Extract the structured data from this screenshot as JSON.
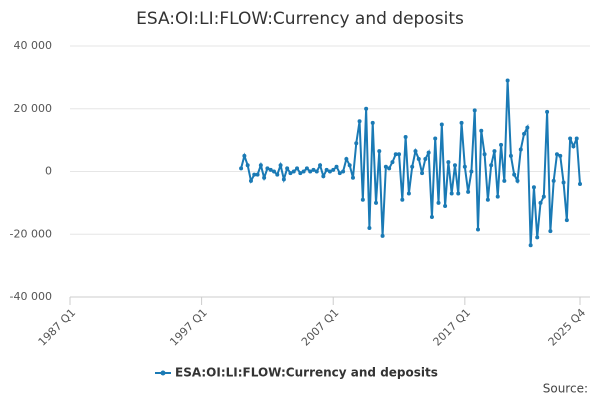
{
  "chart_data": {
    "type": "line",
    "title": "ESA:OI:LI:FLOW:Currency and deposits",
    "source": "Source:",
    "categories": [
      "1987 Q1",
      "1987 Q2",
      "1987 Q3",
      "1987 Q4",
      "1988 Q1",
      "1988 Q2",
      "1988 Q3",
      "1988 Q4",
      "1989 Q1",
      "1989 Q2",
      "1989 Q3",
      "1989 Q4",
      "1990 Q1",
      "1990 Q2",
      "1990 Q3",
      "1990 Q4",
      "1991 Q1",
      "1991 Q2",
      "1991 Q3",
      "1991 Q4",
      "1992 Q1",
      "1992 Q2",
      "1992 Q3",
      "1992 Q4",
      "1993 Q1",
      "1993 Q2",
      "1993 Q3",
      "1993 Q4",
      "1994 Q1",
      "1994 Q2",
      "1994 Q3",
      "1994 Q4",
      "1995 Q1",
      "1995 Q2",
      "1995 Q3",
      "1995 Q4",
      "1996 Q1",
      "1996 Q2",
      "1996 Q3",
      "1996 Q4",
      "1997 Q1",
      "1997 Q2",
      "1997 Q3",
      "1997 Q4",
      "1998 Q1",
      "1998 Q2",
      "1998 Q3",
      "1998 Q4",
      "1999 Q1",
      "1999 Q2",
      "1999 Q3",
      "1999 Q4",
      "2000 Q1",
      "2000 Q2",
      "2000 Q3",
      "2000 Q4",
      "2001 Q1",
      "2001 Q2",
      "2001 Q3",
      "2001 Q4",
      "2002 Q1",
      "2002 Q2",
      "2002 Q3",
      "2002 Q4",
      "2003 Q1",
      "2003 Q2",
      "2003 Q3",
      "2003 Q4",
      "2004 Q1",
      "2004 Q2",
      "2004 Q3",
      "2004 Q4",
      "2005 Q1",
      "2005 Q2",
      "2005 Q3",
      "2005 Q4",
      "2006 Q1",
      "2006 Q2",
      "2006 Q3",
      "2006 Q4",
      "2007 Q1",
      "2007 Q2",
      "2007 Q3",
      "2007 Q4",
      "2008 Q1",
      "2008 Q2",
      "2008 Q3",
      "2008 Q4",
      "2009 Q1",
      "2009 Q2",
      "2009 Q3",
      "2009 Q4",
      "2010 Q1",
      "2010 Q2",
      "2010 Q3",
      "2010 Q4",
      "2011 Q1",
      "2011 Q2",
      "2011 Q3",
      "2011 Q4",
      "2012 Q1",
      "2012 Q2",
      "2012 Q3",
      "2012 Q4",
      "2013 Q1",
      "2013 Q2",
      "2013 Q3",
      "2013 Q4",
      "2014 Q1",
      "2014 Q2",
      "2014 Q3",
      "2014 Q4",
      "2015 Q1",
      "2015 Q2",
      "2015 Q3",
      "2015 Q4",
      "2016 Q1",
      "2016 Q2",
      "2016 Q3",
      "2016 Q4",
      "2017 Q1",
      "2017 Q2",
      "2017 Q3",
      "2017 Q4",
      "2018 Q1",
      "2018 Q2",
      "2018 Q3",
      "2018 Q4",
      "2019 Q1",
      "2019 Q2",
      "2019 Q3",
      "2019 Q4",
      "2020 Q1",
      "2020 Q2",
      "2020 Q3",
      "2020 Q4",
      "2021 Q1",
      "2021 Q2",
      "2021 Q3",
      "2021 Q4",
      "2022 Q1",
      "2022 Q2",
      "2022 Q3",
      "2022 Q4",
      "2023 Q1",
      "2023 Q2",
      "2023 Q3",
      "2023 Q4",
      "2024 Q1",
      "2024 Q2",
      "2024 Q3",
      "2024 Q4",
      "2025 Q1",
      "2025 Q2",
      "2025 Q3",
      "2025 Q4"
    ],
    "series": [
      {
        "name": "ESA:OI:LI:FLOW:Currency and deposits",
        "color": "#1a7ab5",
        "values": [
          null,
          null,
          null,
          null,
          null,
          null,
          null,
          null,
          null,
          null,
          null,
          null,
          null,
          null,
          null,
          null,
          null,
          null,
          null,
          null,
          null,
          null,
          null,
          null,
          null,
          null,
          null,
          null,
          null,
          null,
          null,
          null,
          null,
          null,
          null,
          null,
          null,
          null,
          null,
          null,
          null,
          null,
          null,
          null,
          null,
          null,
          null,
          null,
          null,
          null,
          null,
          null,
          1000,
          5000,
          2000,
          -3000,
          -1000,
          -1000,
          2000,
          -2000,
          1000,
          500,
          0,
          -1000,
          2000,
          -2500,
          1000,
          -500,
          0,
          1000,
          -500,
          0,
          1000,
          0,
          500,
          0,
          2000,
          -1500,
          500,
          0,
          500,
          1500,
          -500,
          0,
          4000,
          2000,
          -2000,
          9000,
          16000,
          -9000,
          20000,
          -18000,
          15500,
          -10000,
          6500,
          -20500,
          1500,
          1000,
          3000,
          5500,
          5500,
          -9000,
          11000,
          -7000,
          1500,
          6500,
          4000,
          -500,
          4000,
          6000,
          -14500,
          10500,
          -10000,
          15000,
          -11000,
          3000,
          -7000,
          2000,
          -7000,
          15500,
          1500,
          -6500,
          0,
          19500,
          -18500,
          13000,
          5500,
          -9000,
          2000,
          6500,
          -8000,
          8500,
          -3000,
          29000,
          5000,
          -1000,
          -3000,
          7000,
          12000,
          14000,
          -23500,
          -5000,
          -21000,
          -10000,
          -8000,
          19000,
          -19000,
          -3000,
          5500,
          5000,
          -3500,
          -15500,
          10500,
          8000,
          10500,
          -4000
        ]
      }
    ],
    "xticks": [
      0,
      40,
      80,
      120,
      155
    ],
    "ylim": [
      -40000,
      40000
    ],
    "yticks": [
      {
        "value": -40000,
        "label": "-40 000"
      },
      {
        "value": -20000,
        "label": "-20 000"
      },
      0,
      {
        "value": 20000,
        "label": "20 000"
      },
      {
        "value": 40000,
        "label": "40 000"
      }
    ],
    "grid": true,
    "legend": "bottom"
  }
}
